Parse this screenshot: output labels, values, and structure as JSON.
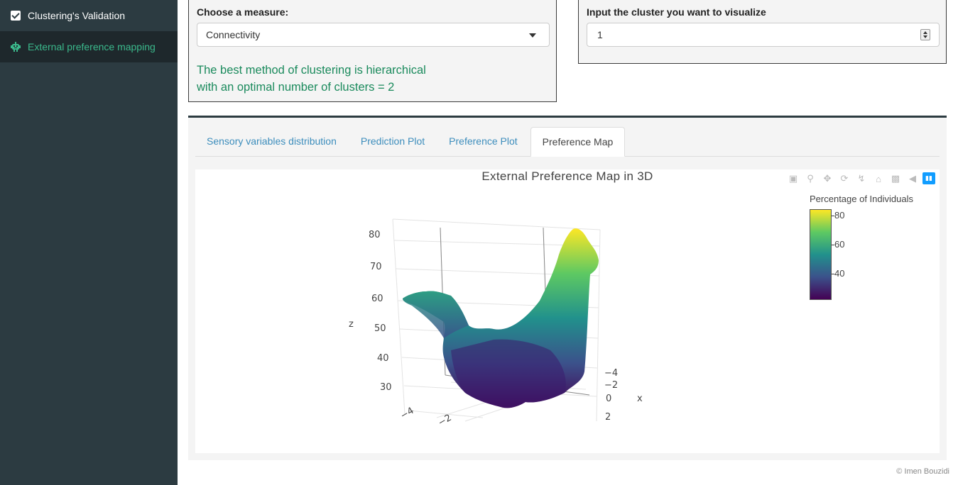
{
  "sidebar": {
    "items": [
      {
        "label": "Clustering's Validation",
        "icon": "check-square-icon"
      },
      {
        "label": "External preference mapping",
        "icon": "robot-icon"
      }
    ]
  },
  "measure_box": {
    "label": "Choose a measure:",
    "selected": "Connectivity",
    "result_line1": "The best method of clustering is hierarchical",
    "result_line2": "with an optimal number of clusters = 2"
  },
  "cluster_box": {
    "label": "Input the cluster you want to visualize",
    "value": "1"
  },
  "tabs": [
    {
      "label": "Sensory variables distribution"
    },
    {
      "label": "Prediction Plot"
    },
    {
      "label": "Preference Plot"
    },
    {
      "label": "Preference Map"
    }
  ],
  "chart_data": {
    "type": "surface",
    "title": "External Preference Map in 3D",
    "zlabel": "z",
    "xlabel": "x",
    "z_ticks": [
      "80",
      "70",
      "60",
      "50",
      "40",
      "30"
    ],
    "x_ticks": [
      "−4",
      "−2",
      "0",
      "2"
    ],
    "y_ticks": [
      "−4",
      "−2"
    ],
    "colorbar": {
      "title": "Percentage of Individuals",
      "ticks": [
        80,
        60,
        40
      ],
      "range": [
        22,
        85
      ],
      "colorscale": "viridis",
      "colors": [
        "#440154",
        "#3b528b",
        "#21918c",
        "#5ec962",
        "#fde725"
      ]
    }
  },
  "footer": "© Imen Bouzidi"
}
